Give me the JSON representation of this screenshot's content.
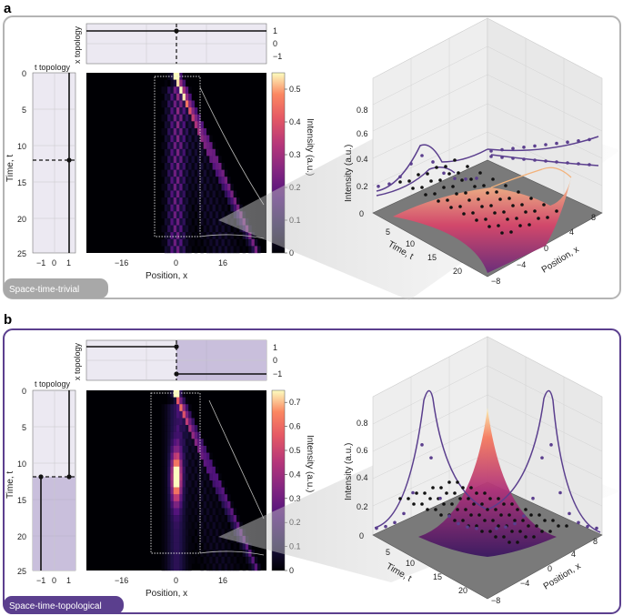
{
  "colors": {
    "panel_a_border": "#b4b4b4",
    "panel_b_border": "#5b3f8e",
    "badge_a": "#a8a8a8",
    "badge_b": "#5b3f8e",
    "topo_bg": "#ece9f2",
    "topo_shade": "#c9bfdc",
    "curve": "#5b3f8e",
    "marker": "#222222"
  },
  "panels": [
    {
      "id": "a",
      "label": "a",
      "badge": "Space-time-trivial",
      "x_topology": {
        "ylabel": "x topology",
        "yticks": [
          "1",
          "0",
          "−1"
        ],
        "segments": [
          {
            "from": -30,
            "to": 30,
            "value": 1
          }
        ],
        "switch_x": 0
      },
      "t_topology": {
        "title": "t topology",
        "xticks": [
          "−1",
          "0",
          "1"
        ],
        "segments": [
          {
            "from": 0,
            "to": 25,
            "value": 1
          }
        ],
        "switch_t": 12.5
      },
      "heatmap": {
        "xlabel": "Position, x",
        "ylabel": "Time, t",
        "xticks": [
          "−16",
          "0",
          "16"
        ],
        "yticks": [
          "0",
          "5",
          "10",
          "15",
          "20",
          "25"
        ],
        "colorbar_label": "Intensity (a.u.)",
        "colorbar_ticks": [
          "0",
          "0.1",
          "0.2",
          "0.3",
          "0.4",
          "0.5"
        ],
        "colorbar_max": 0.55,
        "mode": "trivial"
      },
      "surface": {
        "zlabel": "Intensity (a.u.)",
        "xlabel": "Time, t",
        "ylabel": "Position, x",
        "zticks": [
          "0",
          "0.2",
          "0.4",
          "0.6",
          "0.8"
        ],
        "tticks": [
          "5",
          "10",
          "15",
          "20"
        ],
        "xticks": [
          "8",
          "4",
          "0",
          "−4",
          "−8"
        ]
      }
    },
    {
      "id": "b",
      "label": "b",
      "badge": "Space-time-topological",
      "x_topology": {
        "ylabel": "x topology",
        "yticks": [
          "1",
          "0",
          "−1"
        ],
        "segments": [
          {
            "from": -30,
            "to": 0,
            "value": 1
          },
          {
            "from": 0,
            "to": 30,
            "value": -1
          }
        ],
        "switch_x": 0
      },
      "t_topology": {
        "title": "t topology",
        "xticks": [
          "−1",
          "0",
          "1"
        ],
        "segments": [
          {
            "from": 0,
            "to": 12.5,
            "value": 1
          },
          {
            "from": 12.5,
            "to": 25,
            "value": -1
          }
        ],
        "switch_t": 12.5
      },
      "heatmap": {
        "xlabel": "Position, x",
        "ylabel": "Time, t",
        "xticks": [
          "−16",
          "0",
          "16"
        ],
        "yticks": [
          "0",
          "5",
          "10",
          "15",
          "20",
          "25"
        ],
        "colorbar_label": "Intensity (a.u.)",
        "colorbar_ticks": [
          "0",
          "0.1",
          "0.2",
          "0.3",
          "0.4",
          "0.5",
          "0.6",
          "0.7"
        ],
        "colorbar_max": 0.75,
        "mode": "topological"
      },
      "surface": {
        "zlabel": "Intensity (a.u.)",
        "xlabel": "Time, t",
        "ylabel": "Position, x",
        "zticks": [
          "0",
          "0.2",
          "0.4",
          "0.6",
          "0.8"
        ],
        "tticks": [
          "5",
          "10",
          "15",
          "20"
        ],
        "xticks": [
          "8",
          "4",
          "0",
          "−4",
          "−8"
        ]
      }
    }
  ],
  "chart_data": [
    {
      "type": "heatmap",
      "title": "Space-time-trivial",
      "xlabel": "Position, x",
      "ylabel": "Time, t",
      "xlim": [
        -30,
        30
      ],
      "ylim": [
        0,
        25
      ],
      "zlim": [
        0,
        0.55
      ],
      "colorbar_label": "Intensity (a.u.)"
    },
    {
      "type": "heatmap",
      "title": "Space-time-topological",
      "xlabel": "Position, x",
      "ylabel": "Time, t",
      "xlim": [
        -30,
        30
      ],
      "ylim": [
        0,
        25
      ],
      "zlim": [
        0,
        0.75
      ],
      "colorbar_label": "Intensity (a.u.)"
    }
  ]
}
